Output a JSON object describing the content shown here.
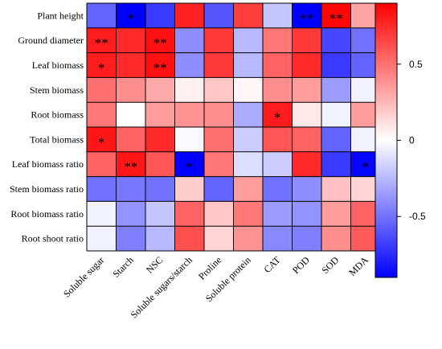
{
  "chart_data": {
    "type": "heatmap",
    "title": "",
    "xlabel": "",
    "ylabel": "",
    "columns": [
      "Soluble sugar",
      "Starch",
      "NSC",
      "Soluble sugars/starch",
      "Proline",
      "Soluble protein",
      "CAT",
      "POD",
      "SOD",
      "MDA"
    ],
    "rows": [
      "Plant height",
      "Ground diameter",
      "Leaf biomass",
      "Stem biomass",
      "Root biomass",
      "Total biomass",
      "Leaf biomass ratio",
      "Stem biomass ratio",
      "Root biomass ratio",
      "Root shoot ratio"
    ],
    "values": [
      [
        -0.55,
        -0.92,
        -0.7,
        0.78,
        -0.6,
        0.68,
        -0.2,
        -0.93,
        0.88,
        0.32
      ],
      [
        0.8,
        0.75,
        0.84,
        -0.4,
        0.7,
        -0.25,
        0.48,
        0.7,
        -0.65,
        -0.5
      ],
      [
        0.8,
        0.75,
        0.84,
        -0.4,
        0.7,
        -0.25,
        0.55,
        0.75,
        -0.7,
        -0.55
      ],
      [
        0.5,
        0.4,
        0.3,
        0.05,
        0.2,
        0.03,
        0.4,
        0.35,
        -0.35,
        -0.05
      ],
      [
        0.48,
        0.0,
        0.35,
        0.38,
        0.4,
        -0.3,
        0.8,
        0.08,
        -0.05,
        0.35
      ],
      [
        0.82,
        0.55,
        0.75,
        -0.02,
        0.5,
        -0.18,
        0.6,
        0.55,
        -0.55,
        -0.05
      ],
      [
        0.55,
        0.82,
        0.6,
        -0.92,
        0.48,
        -0.12,
        -0.18,
        0.75,
        -0.7,
        -0.88
      ],
      [
        -0.5,
        -0.48,
        -0.5,
        0.18,
        -0.55,
        0.35,
        -0.5,
        -0.4,
        0.22,
        0.15
      ],
      [
        -0.05,
        -0.38,
        -0.2,
        0.55,
        0.2,
        0.48,
        -0.35,
        -0.38,
        0.35,
        0.55
      ],
      [
        -0.05,
        -0.45,
        -0.25,
        0.62,
        0.15,
        0.38,
        -0.42,
        -0.45,
        0.4,
        0.58
      ]
    ],
    "significance": [
      [
        "",
        "*",
        "",
        "",
        "",
        "",
        "",
        "**",
        "**",
        ""
      ],
      [
        "**",
        "",
        "**",
        "",
        "",
        "",
        "",
        "",
        "",
        ""
      ],
      [
        "*",
        "",
        "**",
        "",
        "",
        "",
        "",
        "",
        "",
        ""
      ],
      [
        "",
        "",
        "",
        "",
        "",
        "",
        "",
        "",
        "",
        ""
      ],
      [
        "",
        "",
        "",
        "",
        "",
        "",
        "*",
        "",
        "",
        ""
      ],
      [
        "*",
        "",
        "",
        "",
        "",
        "",
        "",
        "",
        "",
        ""
      ],
      [
        "",
        "**",
        "",
        "*",
        "",
        "",
        "",
        "",
        "",
        "*"
      ],
      [
        "",
        "",
        "",
        "",
        "",
        "",
        "",
        "",
        "",
        ""
      ],
      [
        "",
        "",
        "",
        "",
        "",
        "",
        "",
        "",
        "",
        ""
      ],
      [
        "",
        "",
        "",
        "",
        "",
        "",
        "",
        "",
        "",
        ""
      ]
    ],
    "colorbar": {
      "range": [
        -0.9,
        0.9
      ],
      "ticks": [
        0.5,
        0,
        -0.5
      ],
      "tick_labels": [
        "0.5",
        "0",
        "-0.5"
      ],
      "low_color": "#0000ff",
      "mid_color": "#ffffff",
      "high_color": "#ff0000"
    },
    "grid": true
  }
}
